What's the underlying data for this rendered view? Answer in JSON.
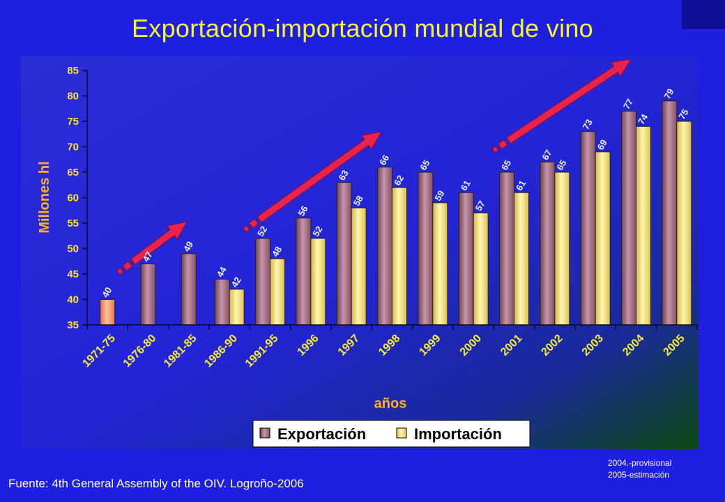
{
  "title": "Exportación-importación mundial de vino",
  "source": "Fuente: 4th General Assembly of the OIV. Logroño-2006",
  "notes": [
    "2004.-provisional",
    "2005-estimación"
  ],
  "colors": {
    "background": "#1f1fe0",
    "title": "#f5f532",
    "export_bar": "#a87388",
    "import_bar": "#ffef86",
    "first_bar": "#ff9e70",
    "arrow": "#e8234e",
    "axis_text": "#fbe13a",
    "axis_title": "#ffb21e"
  },
  "chart_data": {
    "type": "bar",
    "categories": [
      "1971-75",
      "1976-80",
      "1981-85",
      "1986-90",
      "1991-95",
      "1996",
      "1997",
      "1998",
      "1999",
      "2000",
      "2001",
      "2002",
      "2003",
      "2004",
      "2005"
    ],
    "series": [
      {
        "name": "Exportación",
        "values": [
          40,
          47,
          49,
          44,
          52,
          56,
          63,
          66,
          65,
          61,
          65,
          67,
          73,
          77,
          79
        ]
      },
      {
        "name": "Importación",
        "values": [
          null,
          null,
          null,
          42,
          48,
          52,
          58,
          62,
          59,
          57,
          61,
          65,
          69,
          74,
          75
        ]
      }
    ],
    "xlabel": "años",
    "ylabel": "Millones hl",
    "ylim": [
      35,
      85
    ],
    "yticks": [
      35,
      40,
      45,
      50,
      55,
      60,
      65,
      70,
      75,
      80,
      85
    ],
    "legend_position": "bottom",
    "grid": false
  }
}
